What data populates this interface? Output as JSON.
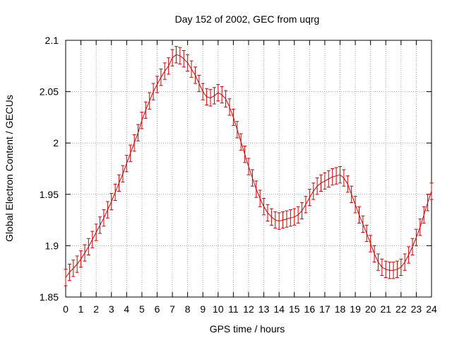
{
  "chart_data": {
    "type": "line",
    "title": "Day 152 of 2002, GEC from uqrg",
    "xlabel": "GPS time / hours",
    "ylabel": "Global Electron Content / GECUs",
    "xlim": [
      0,
      24
    ],
    "ylim": [
      1.85,
      2.1
    ],
    "grid": true,
    "xticks": [
      0,
      1,
      2,
      3,
      4,
      5,
      6,
      7,
      8,
      9,
      10,
      11,
      12,
      13,
      14,
      15,
      16,
      17,
      18,
      19,
      20,
      21,
      22,
      23,
      24
    ],
    "yticks": [
      1.85,
      1.9,
      1.95,
      2,
      2.05,
      2.1
    ],
    "ytick_labels": [
      "1.85",
      "1.9",
      "1.95",
      "2",
      "2.05",
      "2.1"
    ],
    "series": [
      {
        "name": "GEC",
        "color": "#cc0000",
        "error_bar": 0.008,
        "x": [
          0,
          0.25,
          0.5,
          0.75,
          1,
          1.25,
          1.5,
          1.75,
          2,
          2.25,
          2.5,
          2.75,
          3,
          3.25,
          3.5,
          3.75,
          4,
          4.25,
          4.5,
          4.75,
          5,
          5.25,
          5.5,
          5.75,
          6,
          6.25,
          6.5,
          6.75,
          7,
          7.25,
          7.5,
          7.75,
          8,
          8.25,
          8.5,
          8.75,
          9,
          9.25,
          9.5,
          9.75,
          10,
          10.25,
          10.5,
          10.75,
          11,
          11.25,
          11.5,
          11.75,
          12,
          12.25,
          12.5,
          12.75,
          13,
          13.25,
          13.5,
          13.75,
          14,
          14.25,
          14.5,
          14.75,
          15,
          15.25,
          15.5,
          15.75,
          16,
          16.25,
          16.5,
          16.75,
          17,
          17.25,
          17.5,
          17.75,
          18,
          18.25,
          18.5,
          18.75,
          19,
          19.25,
          19.5,
          19.75,
          20,
          20.25,
          20.5,
          20.75,
          21,
          21.25,
          21.5,
          21.75,
          22,
          22.25,
          22.5,
          22.75,
          23,
          23.25,
          23.5,
          23.75,
          24
        ],
        "y": [
          1.869,
          1.874,
          1.878,
          1.882,
          1.887,
          1.893,
          1.899,
          1.906,
          1.913,
          1.92,
          1.927,
          1.935,
          1.943,
          1.952,
          1.961,
          1.97,
          1.98,
          1.99,
          2.0,
          2.01,
          2.022,
          2.032,
          2.041,
          2.05,
          2.057,
          2.064,
          2.07,
          2.075,
          2.083,
          2.086,
          2.085,
          2.082,
          2.078,
          2.072,
          2.066,
          2.058,
          2.05,
          2.045,
          2.044,
          2.046,
          2.049,
          2.047,
          2.043,
          2.035,
          2.025,
          2.013,
          2.001,
          1.989,
          1.977,
          1.966,
          1.955,
          1.946,
          1.938,
          1.932,
          1.928,
          1.925,
          1.924,
          1.925,
          1.926,
          1.927,
          1.928,
          1.93,
          1.934,
          1.94,
          1.947,
          1.953,
          1.958,
          1.961,
          1.963,
          1.965,
          1.967,
          1.968,
          1.969,
          1.966,
          1.96,
          1.95,
          1.94,
          1.93,
          1.921,
          1.912,
          1.902,
          1.892,
          1.884,
          1.879,
          1.877,
          1.876,
          1.876,
          1.877,
          1.879,
          1.884,
          1.891,
          1.899,
          1.908,
          1.918,
          1.93,
          1.942,
          1.953
        ]
      }
    ]
  }
}
